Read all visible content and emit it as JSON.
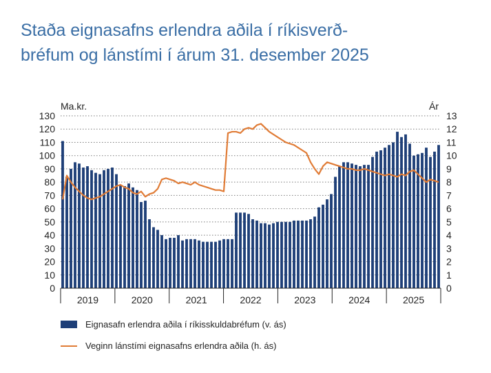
{
  "title": {
    "line1": "Staða eignasafns erlendra aðila í ríkisverð-",
    "line2": "bréfum og lánstími í árum 31. desember 2025"
  },
  "colors": {
    "title": "#3a6ea5",
    "bars": "#1e3f78",
    "line": "#e07b35",
    "grid": "#7a7a7a"
  },
  "chart_data": {
    "type": "bar+line",
    "left_axis_label": "Ma.kr.",
    "right_axis_label": "Ár",
    "left_ylim": [
      0,
      130
    ],
    "right_ylim": [
      0,
      13
    ],
    "left_ticks": [
      0,
      10,
      20,
      30,
      40,
      50,
      60,
      70,
      80,
      90,
      100,
      110,
      120,
      130
    ],
    "right_ticks": [
      0,
      1,
      2,
      3,
      4,
      5,
      6,
      7,
      8,
      9,
      10,
      11,
      12,
      13
    ],
    "grid": true,
    "years": [
      "2019",
      "2020",
      "2021",
      "2022",
      "2023",
      "2024",
      "2025"
    ],
    "series": [
      {
        "name": "Eignasafn erlendra aðila í ríkisskuldabréfum (v. ás)",
        "type": "bar",
        "axis": "left",
        "values": [
          111,
          84,
          90,
          95,
          94,
          91,
          92,
          89,
          87,
          86,
          89,
          90,
          91,
          86,
          78,
          77,
          79,
          76,
          74,
          65,
          66,
          52,
          46,
          44,
          40,
          37,
          38,
          38,
          40,
          36,
          37,
          37,
          37,
          36,
          35,
          35,
          35,
          35,
          36,
          37,
          37,
          37,
          57,
          57,
          57,
          56,
          52,
          51,
          49,
          49,
          48,
          49,
          50,
          50,
          50,
          50,
          51,
          51,
          51,
          51,
          52,
          54,
          61,
          63,
          67,
          71,
          84,
          92,
          95,
          95,
          94,
          93,
          92,
          93,
          93,
          99,
          103,
          104,
          106,
          108,
          110,
          118,
          114,
          116,
          109,
          100,
          101,
          102,
          106,
          99,
          103,
          108
        ]
      },
      {
        "name": "Veginn lánstími eignasafns erlendra aðila (h. ás)",
        "type": "line",
        "axis": "right",
        "values": [
          6.7,
          8.5,
          8.0,
          7.6,
          7.3,
          7.0,
          6.8,
          6.7,
          6.8,
          6.9,
          7.1,
          7.3,
          7.5,
          7.7,
          7.8,
          7.6,
          7.5,
          7.2,
          7.1,
          7.3,
          6.9,
          7.1,
          7.2,
          7.5,
          8.2,
          8.3,
          8.2,
          8.1,
          7.9,
          8.0,
          7.9,
          7.8,
          8.0,
          7.8,
          7.7,
          7.6,
          7.5,
          7.4,
          7.4,
          7.3,
          11.7,
          11.8,
          11.8,
          11.7,
          12.0,
          12.1,
          12.0,
          12.3,
          12.4,
          12.1,
          11.8,
          11.6,
          11.4,
          11.2,
          11.0,
          10.9,
          10.8,
          10.6,
          10.4,
          10.2,
          9.5,
          9.0,
          8.6,
          9.2,
          9.5,
          9.4,
          9.3,
          9.2,
          9.1,
          9.0,
          9.0,
          8.9,
          8.9,
          9.0,
          8.9,
          8.8,
          8.7,
          8.6,
          8.5,
          8.6,
          8.5,
          8.4,
          8.6,
          8.5,
          8.8,
          8.9,
          8.6,
          8.3,
          8.0,
          8.2,
          8.1,
          8.0
        ]
      }
    ]
  },
  "legend": {
    "bars_label": "Eignasafn erlendra aðila í ríkisskuldabréfum (v. ás)",
    "line_label": "Veginn lánstími eignasafns erlendra aðila (h. ás)"
  }
}
